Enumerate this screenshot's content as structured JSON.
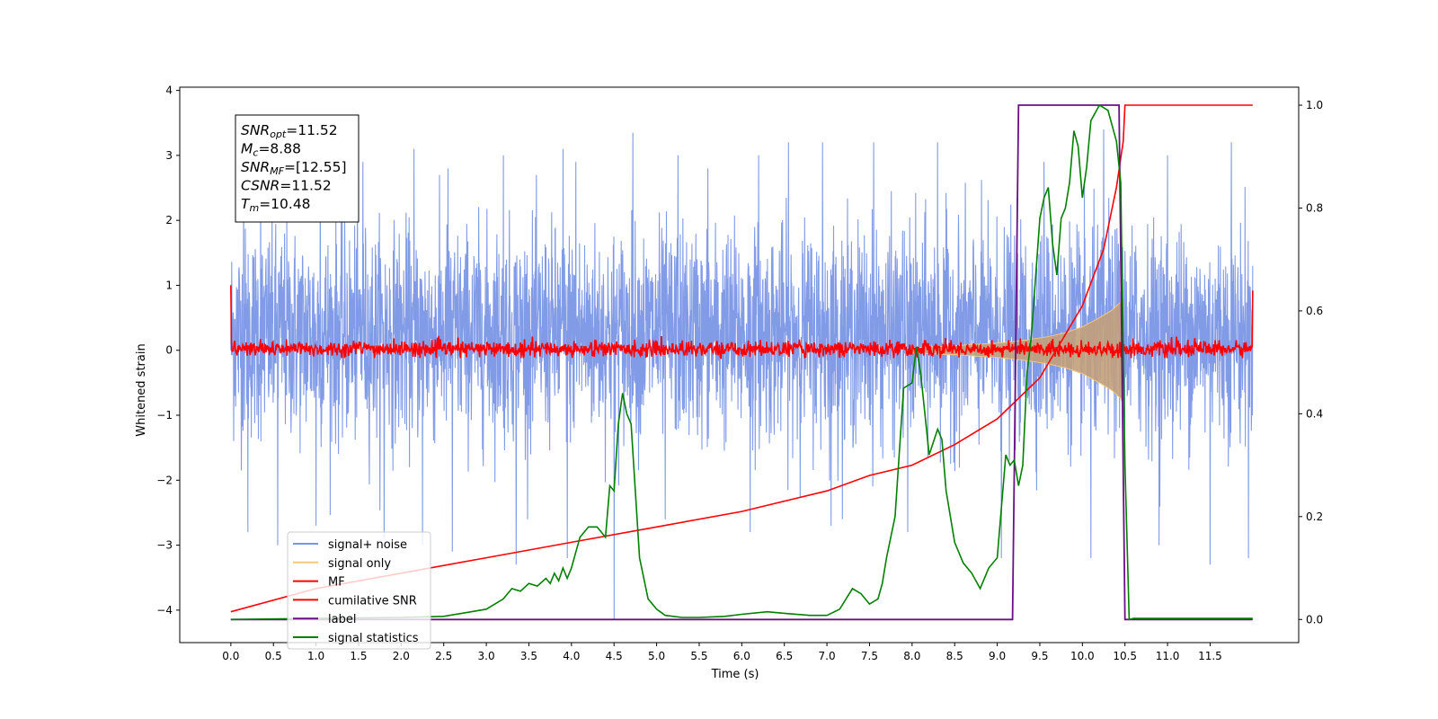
{
  "chart_data": {
    "type": "line",
    "xlabel": "Time (s)",
    "ylabel": "Whitened strain",
    "xlim": [
      -0.6,
      12.54
    ],
    "ylim": [
      -4.5,
      4.05
    ],
    "y2lim": [
      -0.045,
      1.035
    ],
    "xticks": [
      "0.0",
      "0.5",
      "1.0",
      "1.5",
      "2.0",
      "2.5",
      "3.0",
      "3.5",
      "4.0",
      "4.5",
      "5.0",
      "5.5",
      "6.0",
      "6.5",
      "7.0",
      "7.5",
      "8.0",
      "8.5",
      "9.0",
      "9.5",
      "10.0",
      "10.5",
      "11.0",
      "11.5"
    ],
    "yticks": [
      "4",
      "3",
      "2",
      "1",
      "0",
      "−1",
      "−2",
      "−3",
      "−4"
    ],
    "y2ticks": [
      "1.0",
      "0.8",
      "0.6",
      "0.4",
      "0.2",
      "0.0"
    ],
    "annotation": {
      "lines": [
        {
          "name": "SNR",
          "sub": "opt",
          "value": "=11.52"
        },
        {
          "name": "M",
          "sub": "c",
          "value": "=8.88"
        },
        {
          "name": "SNR",
          "sub": "MF",
          "value": "=[12.55]"
        },
        {
          "name": "CSNR",
          "sub": "",
          "value": "=11.52"
        },
        {
          "name": "T",
          "sub": "m",
          "value": "=10.48"
        }
      ]
    },
    "legend": {
      "placement": "lower-left",
      "entries": [
        {
          "label": "signal+ noise",
          "color": "#7b96e6"
        },
        {
          "label": "signal only",
          "color": "#f5c87a"
        },
        {
          "label": "MF",
          "color": "#ff0000"
        },
        {
          "label": "cumilative SNR",
          "color": "#ff0000"
        },
        {
          "label": "label",
          "color": "#6a0f87"
        },
        {
          "label": "signal statistics",
          "color": "#008000"
        }
      ]
    },
    "series": [
      {
        "name": "signal+ noise",
        "axis": "left",
        "color": "#7b96e6",
        "x_range": [
          0.0,
          12.0
        ],
        "approx_envelope": [
          -2.2,
          2.4
        ],
        "spikes_up": [
          [
            0.15,
            2.7
          ],
          [
            0.35,
            2.9
          ],
          [
            1.05,
            3.0
          ],
          [
            1.55,
            2.9
          ],
          [
            2.15,
            3.1
          ],
          [
            2.55,
            2.8
          ],
          [
            3.2,
            3.0
          ],
          [
            3.9,
            3.1
          ],
          [
            4.05,
            2.9
          ],
          [
            4.72,
            3.35
          ],
          [
            5.25,
            3.0
          ],
          [
            5.6,
            2.8
          ],
          [
            6.2,
            3.0
          ],
          [
            6.55,
            3.2
          ],
          [
            6.95,
            3.2
          ],
          [
            7.55,
            3.2
          ],
          [
            8.3,
            3.2
          ],
          [
            9.55,
            2.9
          ],
          [
            10.25,
            3.4
          ],
          [
            11.0,
            3.0
          ],
          [
            11.75,
            3.2
          ]
        ],
        "spikes_down": [
          [
            0.2,
            -2.8
          ],
          [
            0.55,
            -3.0
          ],
          [
            1.0,
            -2.7
          ],
          [
            1.8,
            -2.9
          ],
          [
            2.25,
            -3.0
          ],
          [
            2.6,
            -3.1
          ],
          [
            3.35,
            -3.3
          ],
          [
            3.95,
            -3.2
          ],
          [
            4.5,
            -4.15
          ],
          [
            5.1,
            -2.6
          ],
          [
            6.1,
            -2.8
          ],
          [
            7.05,
            -2.7
          ],
          [
            7.95,
            -2.8
          ],
          [
            9.05,
            -3.2
          ],
          [
            10.1,
            -3.2
          ],
          [
            10.9,
            -3.0
          ],
          [
            11.5,
            -3.3
          ],
          [
            11.95,
            -3.2
          ]
        ]
      },
      {
        "name": "signal only",
        "axis": "left",
        "color": "#f5c87a",
        "x": [
          8.0,
          8.5,
          9.0,
          9.3,
          9.6,
          9.8,
          10.0,
          10.2,
          10.35,
          10.48
        ],
        "amplitude": [
          0.04,
          0.07,
          0.11,
          0.15,
          0.21,
          0.27,
          0.36,
          0.5,
          0.62,
          0.78
        ]
      },
      {
        "name": "MF",
        "axis": "left",
        "color": "#ff0000",
        "x_range": [
          0.0,
          12.0
        ],
        "approx_envelope": [
          -0.12,
          0.22
        ],
        "edge_values": {
          "start": 1.0,
          "end": 0.92
        }
      },
      {
        "name": "cumilative SNR",
        "axis": "right",
        "color": "#ff0000",
        "x": [
          0.0,
          1.0,
          2.0,
          3.0,
          4.0,
          5.0,
          6.0,
          7.0,
          7.5,
          8.0,
          8.5,
          9.0,
          9.5,
          10.0,
          10.25,
          10.4,
          10.48,
          10.5,
          12.0
        ],
        "y": [
          0.015,
          0.06,
          0.09,
          0.12,
          0.15,
          0.18,
          0.21,
          0.25,
          0.28,
          0.3,
          0.34,
          0.39,
          0.47,
          0.61,
          0.72,
          0.84,
          0.93,
          1.0,
          1.0
        ]
      },
      {
        "name": "label",
        "axis": "right",
        "color": "#6a0f87",
        "x": [
          0.0,
          9.18,
          9.25,
          10.43,
          10.5,
          12.0
        ],
        "y": [
          0.0,
          0.0,
          1.0,
          1.0,
          0.0,
          0.0
        ]
      },
      {
        "name": "signal statistics",
        "axis": "right",
        "color": "#008000",
        "x": [
          0.0,
          0.5,
          1.0,
          1.5,
          2.0,
          2.5,
          3.0,
          3.2,
          3.3,
          3.4,
          3.5,
          3.6,
          3.7,
          3.75,
          3.8,
          3.85,
          3.9,
          3.95,
          4.0,
          4.1,
          4.2,
          4.3,
          4.4,
          4.45,
          4.5,
          4.55,
          4.6,
          4.65,
          4.7,
          4.8,
          4.9,
          5.0,
          5.1,
          5.3,
          5.5,
          5.8,
          6.0,
          6.3,
          6.5,
          6.8,
          7.0,
          7.15,
          7.3,
          7.4,
          7.5,
          7.6,
          7.65,
          7.7,
          7.8,
          7.9,
          8.0,
          8.05,
          8.1,
          8.15,
          8.2,
          8.3,
          8.35,
          8.4,
          8.5,
          8.6,
          8.7,
          8.8,
          8.9,
          9.0,
          9.1,
          9.15,
          9.2,
          9.25,
          9.3,
          9.35,
          9.4,
          9.5,
          9.55,
          9.6,
          9.65,
          9.7,
          9.75,
          9.8,
          9.85,
          9.9,
          9.95,
          10.0,
          10.05,
          10.1,
          10.2,
          10.3,
          10.4,
          10.45,
          10.5,
          10.55,
          10.6,
          10.7,
          10.8,
          11.0,
          11.5,
          12.0
        ],
        "y": [
          0.0,
          0.001,
          0.002,
          0.003,
          0.004,
          0.006,
          0.02,
          0.04,
          0.06,
          0.055,
          0.07,
          0.065,
          0.08,
          0.07,
          0.09,
          0.075,
          0.1,
          0.08,
          0.1,
          0.16,
          0.18,
          0.18,
          0.16,
          0.26,
          0.25,
          0.38,
          0.44,
          0.4,
          0.38,
          0.12,
          0.04,
          0.02,
          0.008,
          0.004,
          0.004,
          0.006,
          0.01,
          0.015,
          0.012,
          0.008,
          0.008,
          0.02,
          0.06,
          0.05,
          0.03,
          0.04,
          0.07,
          0.12,
          0.2,
          0.45,
          0.46,
          0.53,
          0.48,
          0.4,
          0.32,
          0.37,
          0.35,
          0.25,
          0.15,
          0.11,
          0.09,
          0.06,
          0.1,
          0.12,
          0.32,
          0.3,
          0.31,
          0.26,
          0.3,
          0.48,
          0.55,
          0.78,
          0.82,
          0.84,
          0.73,
          0.67,
          0.78,
          0.8,
          0.85,
          0.95,
          0.92,
          0.82,
          0.88,
          0.97,
          1.0,
          0.99,
          0.93,
          0.85,
          0.3,
          0.0,
          0.002,
          0.002,
          0.002,
          0.002,
          0.002,
          0.002
        ]
      }
    ]
  }
}
